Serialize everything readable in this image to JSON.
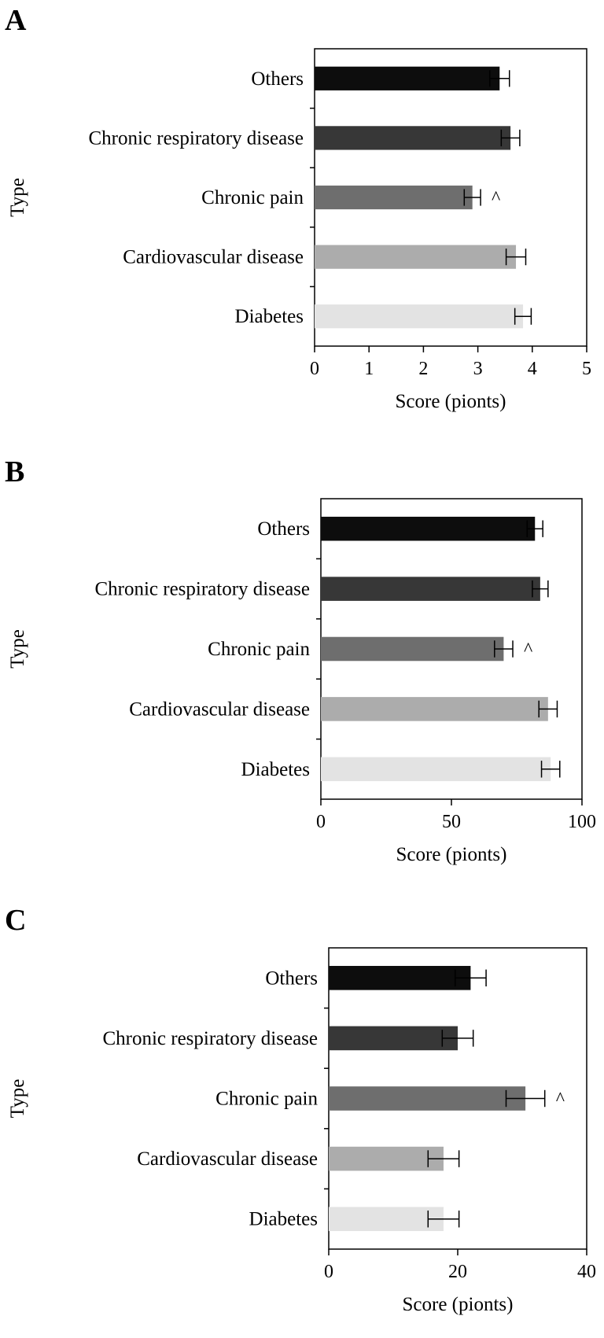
{
  "figure": {
    "colors": {
      "Others": "#0d0d0d",
      "Chronic respiratory disease": "#373737",
      "Chronic pain": "#6e6e6e",
      "Cardiovascular disease": "#acacac",
      "Diabetes": "#e3e3e3"
    }
  },
  "chart_data": [
    {
      "panel": "A",
      "type": "bar",
      "orientation": "horizontal",
      "categories": [
        "Others",
        "Chronic respiratory disease",
        "Chronic pain",
        "Cardiovascular disease",
        "Diabetes"
      ],
      "values": [
        3.4,
        3.6,
        2.9,
        3.7,
        3.83
      ],
      "errors": [
        0.18,
        0.17,
        0.15,
        0.18,
        0.15
      ],
      "annotations": [
        "",
        "",
        "^",
        "",
        ""
      ],
      "xlabel": "Score (pionts)",
      "ylabel": "Type",
      "xlim": [
        0,
        5
      ],
      "xticks": [
        0,
        1,
        2,
        3,
        4,
        5
      ]
    },
    {
      "panel": "B",
      "type": "bar",
      "orientation": "horizontal",
      "categories": [
        "Others",
        "Chronic respiratory disease",
        "Chronic pain",
        "Cardiovascular disease",
        "Diabetes"
      ],
      "values": [
        82,
        84,
        70,
        87,
        88
      ],
      "errors": [
        3.0,
        3.0,
        3.5,
        3.5,
        3.5
      ],
      "annotations": [
        "",
        "",
        "^",
        "",
        ""
      ],
      "xlabel": "Score (pionts)",
      "ylabel": "Type",
      "xlim": [
        0,
        100
      ],
      "xticks": [
        0,
        50,
        100
      ]
    },
    {
      "panel": "C",
      "type": "bar",
      "orientation": "horizontal",
      "categories": [
        "Others",
        "Chronic respiratory disease",
        "Chronic pain",
        "Cardiovascular disease",
        "Diabetes"
      ],
      "values": [
        22,
        20,
        30.5,
        17.8,
        17.8
      ],
      "errors": [
        2.4,
        2.4,
        3.0,
        2.4,
        2.4
      ],
      "annotations": [
        "",
        "",
        "^",
        "",
        ""
      ],
      "xlabel": "Score (pionts)",
      "ylabel": "Type",
      "xlim": [
        0,
        40
      ],
      "xticks": [
        0,
        20,
        40
      ]
    }
  ]
}
